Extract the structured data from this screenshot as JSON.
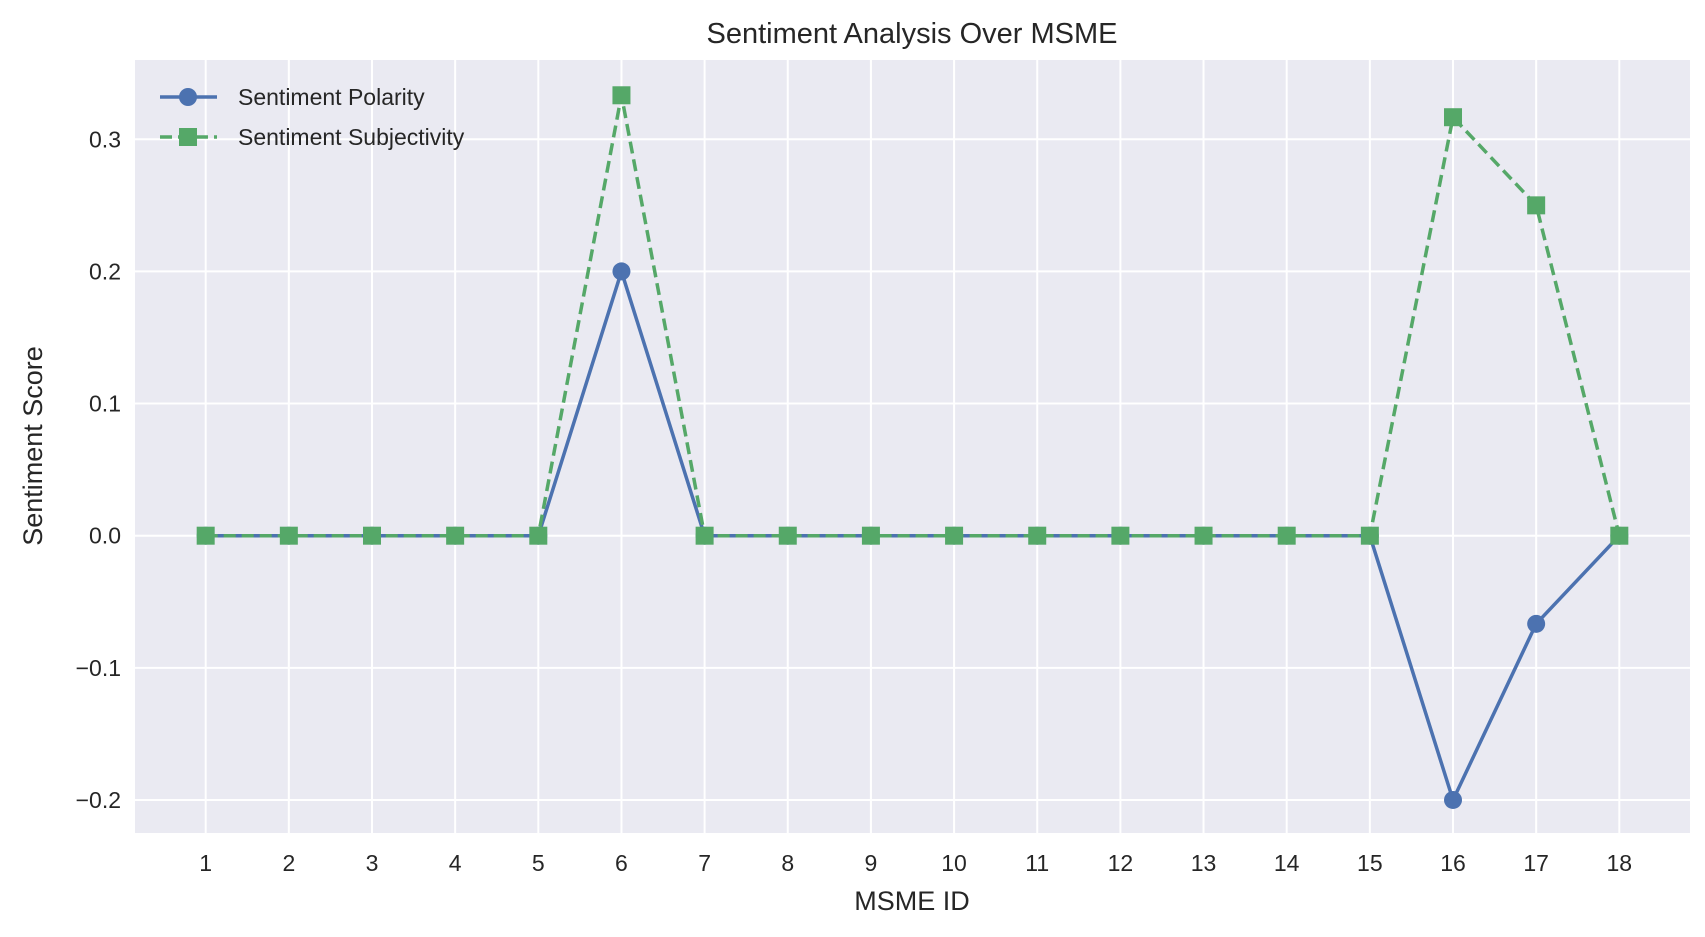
{
  "chart_data": {
    "type": "line",
    "title": "Sentiment Analysis Over MSME",
    "xlabel": "MSME ID",
    "ylabel": "Sentiment Score",
    "x": [
      1,
      2,
      3,
      4,
      5,
      6,
      7,
      8,
      9,
      10,
      11,
      12,
      13,
      14,
      15,
      16,
      17,
      18
    ],
    "x_tick_labels": [
      "1",
      "2",
      "3",
      "4",
      "5",
      "6",
      "7",
      "8",
      "9",
      "10",
      "11",
      "12",
      "13",
      "14",
      "15",
      "16",
      "17",
      "18"
    ],
    "xlim": [
      0.15,
      18.85
    ],
    "ylim": [
      -0.225,
      0.36
    ],
    "y_ticks": [
      -0.2,
      -0.1,
      0.0,
      0.1,
      0.2,
      0.3
    ],
    "y_tick_labels": [
      "−0.2",
      "−0.1",
      "0.0",
      "0.1",
      "0.2",
      "0.3"
    ],
    "grid": true,
    "background_color": "#eaeaf2",
    "legend_position": "top-left",
    "series": [
      {
        "name": "Sentiment Polarity",
        "color": "#4c72b0",
        "line_style": "solid",
        "marker": "circle",
        "values": [
          0,
          0,
          0,
          0,
          0,
          0.2,
          0,
          0,
          0,
          0,
          0,
          0,
          0,
          0,
          0,
          -0.2,
          -0.0667,
          0
        ]
      },
      {
        "name": "Sentiment Subjectivity",
        "color": "#55a868",
        "line_style": "dashed",
        "marker": "square",
        "values": [
          0,
          0,
          0,
          0,
          0,
          0.3333,
          0,
          0,
          0,
          0,
          0,
          0,
          0,
          0,
          0,
          0.3167,
          0.25,
          0
        ]
      }
    ]
  }
}
